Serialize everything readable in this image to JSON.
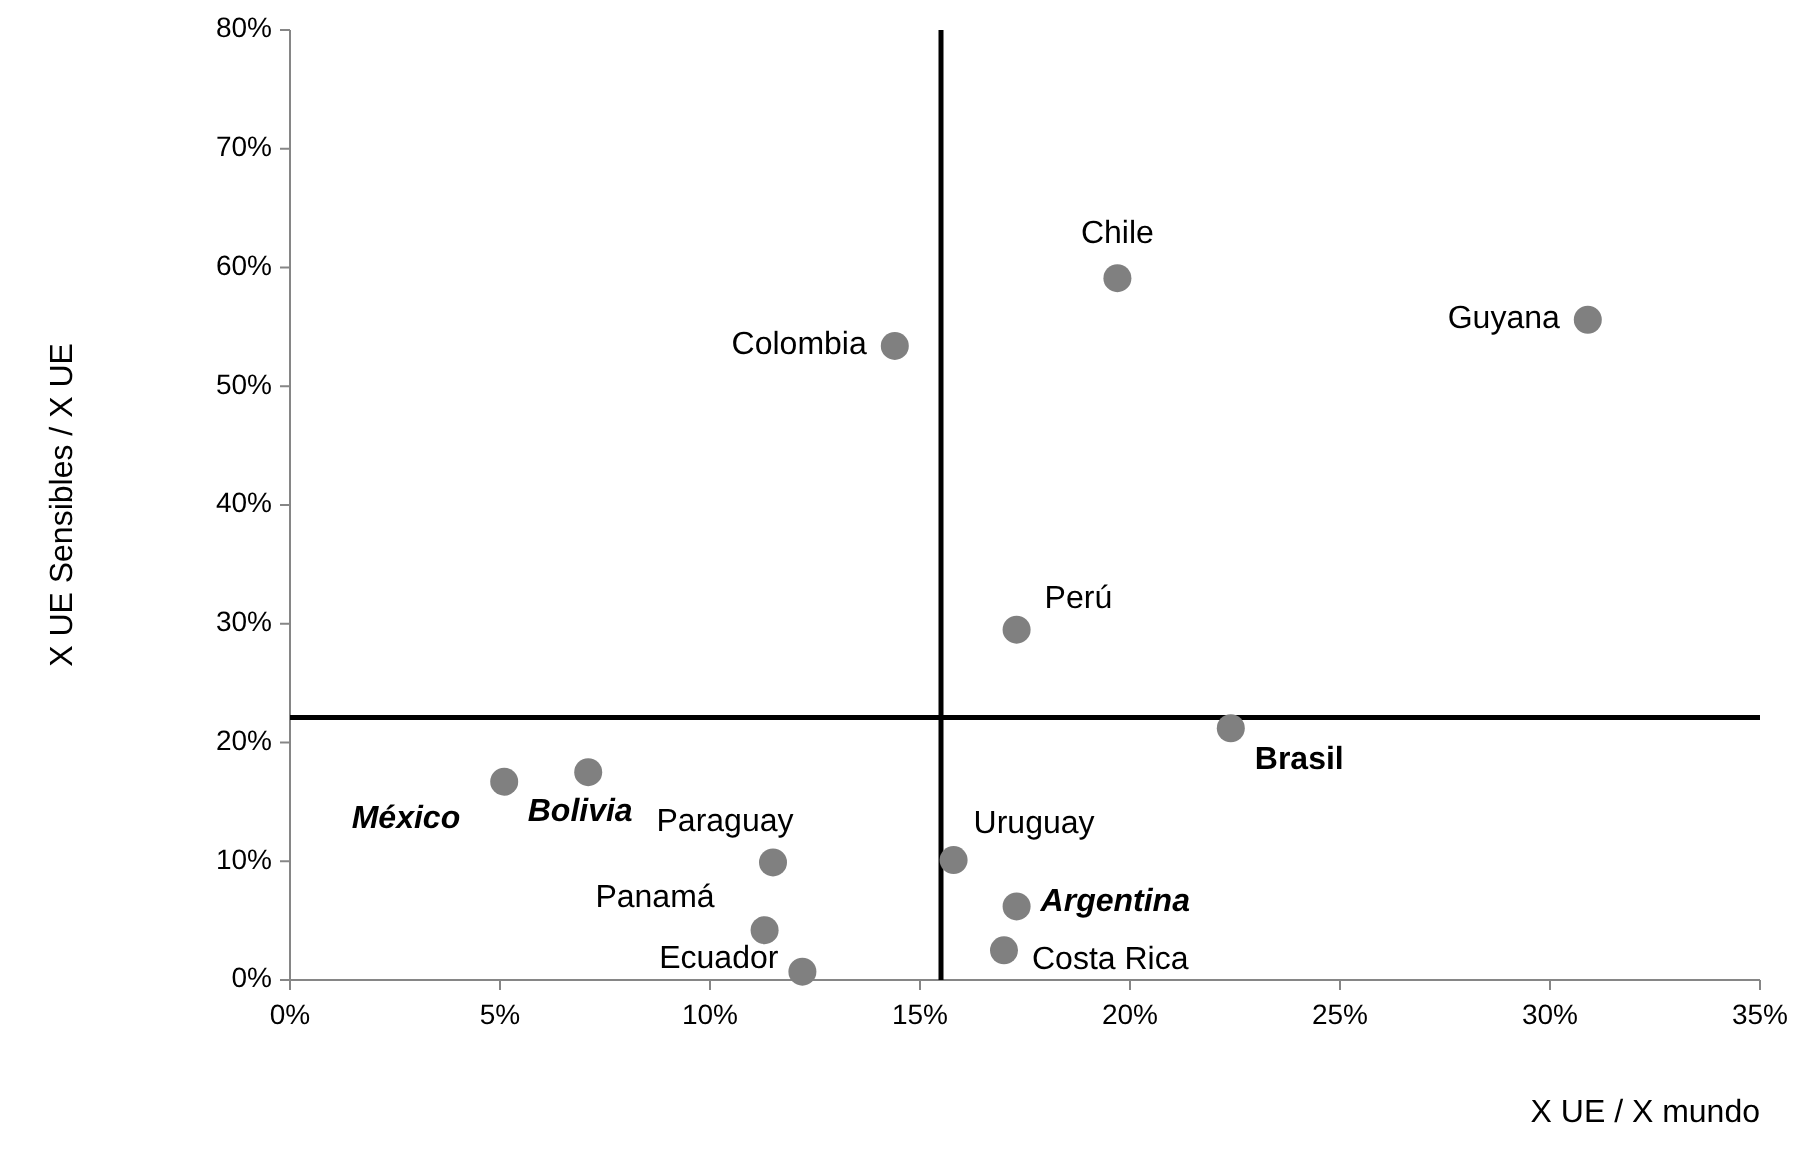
{
  "chart_data": {
    "type": "scatter",
    "xlabel": "X UE / X mundo",
    "ylabel": "X UE Sensibles / X UE",
    "xlim": [
      0,
      35
    ],
    "ylim": [
      0,
      80
    ],
    "xticks": [
      {
        "value": 0,
        "label": "0%"
      },
      {
        "value": 5,
        "label": "5%"
      },
      {
        "value": 10,
        "label": "10%"
      },
      {
        "value": 15,
        "label": "15%"
      },
      {
        "value": 20,
        "label": "20%"
      },
      {
        "value": 25,
        "label": "25%"
      },
      {
        "value": 30,
        "label": "30%"
      },
      {
        "value": 35,
        "label": "35%"
      }
    ],
    "yticks": [
      {
        "value": 0,
        "label": "0%"
      },
      {
        "value": 10,
        "label": "10%"
      },
      {
        "value": 20,
        "label": "20%"
      },
      {
        "value": 30,
        "label": "30%"
      },
      {
        "value": 40,
        "label": "40%"
      },
      {
        "value": 50,
        "label": "50%"
      },
      {
        "value": 60,
        "label": "60%"
      },
      {
        "value": 70,
        "label": "70%"
      },
      {
        "value": 80,
        "label": "80%"
      }
    ],
    "grid": false,
    "marker": "circle",
    "ref_lines": [
      {
        "axis": "y",
        "value": 22.1,
        "color": "#000000"
      },
      {
        "axis": "x",
        "value": 15.5,
        "color": "#000000"
      }
    ],
    "series": [
      {
        "name": "Chile",
        "color": "#808080",
        "x": [
          19.7
        ],
        "values": [
          59.1
        ]
      },
      {
        "name": "Guyana",
        "color": "#808080",
        "x": [
          30.9
        ],
        "values": [
          55.6
        ]
      },
      {
        "name": "Colombia",
        "color": "#808080",
        "x": [
          14.4
        ],
        "values": [
          53.4
        ]
      },
      {
        "name": "Perú",
        "color": "#808080",
        "x": [
          17.3
        ],
        "values": [
          29.5
        ]
      },
      {
        "name": "Brasil",
        "color": "#808080",
        "x": [
          22.4
        ],
        "values": [
          21.2
        ]
      },
      {
        "name": "México",
        "color": "#808080",
        "x": [
          5.1
        ],
        "values": [
          16.7
        ]
      },
      {
        "name": "Bolivia",
        "color": "#808080",
        "x": [
          7.1
        ],
        "values": [
          17.5
        ]
      },
      {
        "name": "Paraguay",
        "color": "#808080",
        "x": [
          11.5
        ],
        "values": [
          9.9
        ]
      },
      {
        "name": "Uruguay",
        "color": "#808080",
        "x": [
          15.8
        ],
        "values": [
          10.1
        ]
      },
      {
        "name": "Argentina",
        "color": "#808080",
        "x": [
          17.3
        ],
        "values": [
          6.2
        ]
      },
      {
        "name": "Panamá",
        "color": "#808080",
        "x": [
          11.3
        ],
        "values": [
          4.2
        ]
      },
      {
        "name": "Costa Rica",
        "color": "#808080",
        "x": [
          17.0
        ],
        "values": [
          2.5
        ]
      },
      {
        "name": "Ecuador",
        "color": "#808080",
        "x": [
          12.2
        ],
        "values": [
          0.7
        ]
      }
    ]
  }
}
